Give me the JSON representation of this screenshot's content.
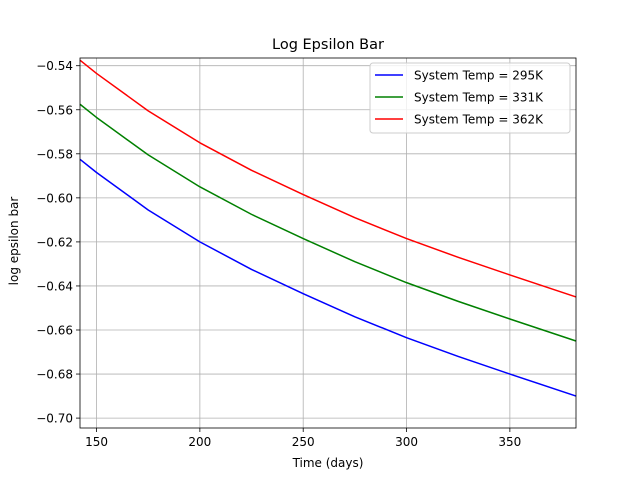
{
  "chart_data": {
    "type": "line",
    "title": "Log Epsilon Bar",
    "xlabel": "Time (days)",
    "ylabel": "log epsilon bar",
    "xlim": [
      142,
      382
    ],
    "ylim": [
      -0.7045,
      -0.5365
    ],
    "xticks": [
      150,
      200,
      250,
      300,
      350
    ],
    "xtick_labels": [
      "150",
      "200",
      "250",
      "300",
      "350"
    ],
    "yticks": [
      -0.54,
      -0.56,
      -0.58,
      -0.6,
      -0.62,
      -0.64,
      -0.66,
      -0.68,
      -0.7
    ],
    "ytick_labels": [
      "−0.54",
      "−0.56",
      "−0.58",
      "−0.60",
      "−0.62",
      "−0.64",
      "−0.66",
      "−0.68",
      "−0.70"
    ],
    "grid": true,
    "legend_position": "top-right",
    "series": [
      {
        "name": "System Temp = 295K",
        "color": "#0000ff",
        "x": [
          142,
          150,
          175,
          200,
          225,
          250,
          275,
          300,
          325,
          350,
          382
        ],
        "y": [
          -0.5825,
          -0.5885,
          -0.6055,
          -0.62,
          -0.6325,
          -0.6435,
          -0.654,
          -0.6635,
          -0.672,
          -0.68,
          -0.69
        ]
      },
      {
        "name": "System Temp = 331K",
        "color": "#008000",
        "x": [
          142,
          150,
          175,
          200,
          225,
          250,
          275,
          300,
          325,
          350,
          382
        ],
        "y": [
          -0.5575,
          -0.5635,
          -0.5805,
          -0.595,
          -0.6075,
          -0.6185,
          -0.629,
          -0.6385,
          -0.647,
          -0.655,
          -0.665
        ]
      },
      {
        "name": "System Temp = 362K",
        "color": "#ff0000",
        "x": [
          142,
          150,
          175,
          200,
          225,
          250,
          275,
          300,
          325,
          350,
          382
        ],
        "y": [
          -0.5375,
          -0.5435,
          -0.5605,
          -0.575,
          -0.5875,
          -0.5985,
          -0.609,
          -0.6185,
          -0.627,
          -0.635,
          -0.645
        ]
      }
    ]
  }
}
